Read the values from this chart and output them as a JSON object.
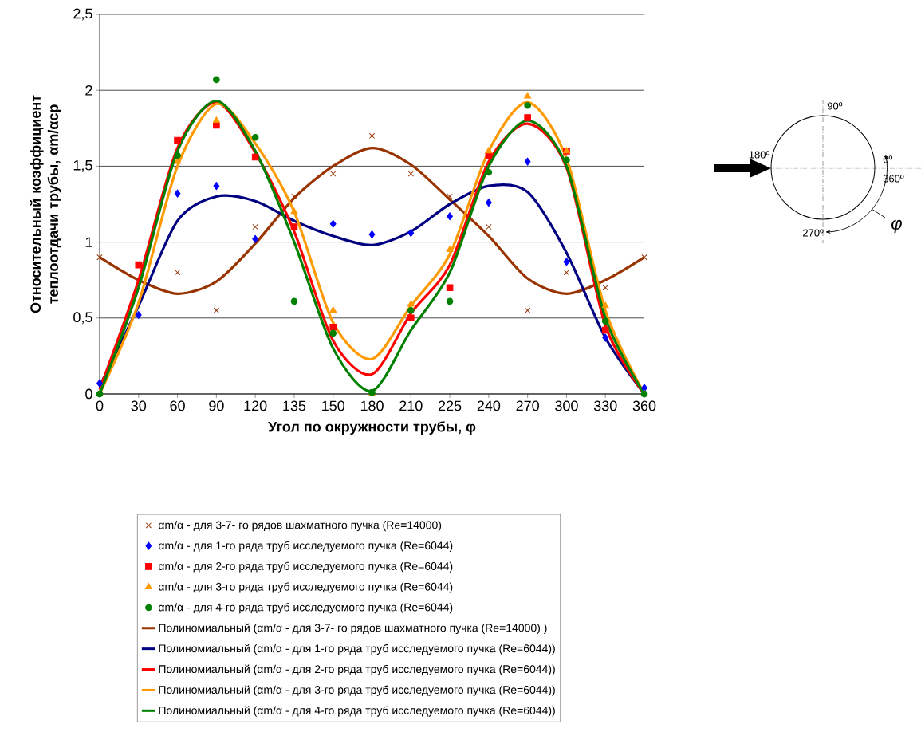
{
  "chart_data": {
    "type": "scatter",
    "xlabel": "Угол по окружности трубы, φ",
    "ylabel": "Относительный коэффициент теплоотдачи трубы, αm/αср",
    "categories": [
      "0",
      "30",
      "60",
      "90",
      "120",
      "135",
      "150",
      "180",
      "210",
      "225",
      "240",
      "270",
      "300",
      "330",
      "360"
    ],
    "ylim": [
      0,
      2.5
    ],
    "yticks": [
      0,
      {
        "value": 0.5,
        "label": "0,5"
      },
      1,
      {
        "value": 1.5,
        "label": "1,5"
      },
      2,
      {
        "value": 2.5,
        "label": "2,5"
      }
    ],
    "grid": "y",
    "legend": "bottom",
    "series": [
      {
        "name": "αm/α - для 3-7- го рядов шахматного пучка (Re=14000)",
        "type": "scatter",
        "marker": "cross",
        "color": "#993300",
        "values": [
          0.9,
          null,
          0.8,
          0.55,
          1.1,
          1.3,
          1.45,
          1.7,
          1.45,
          1.3,
          1.1,
          0.55,
          0.8,
          0.7,
          0.9
        ]
      },
      {
        "name": "αm/α - для 1-го ряда труб исследуемого пучка (Re=6044)",
        "type": "scatter",
        "marker": "diamond",
        "color": "#0000ff",
        "values": [
          0.07,
          0.52,
          1.32,
          1.37,
          1.02,
          null,
          1.12,
          1.05,
          1.06,
          1.17,
          1.26,
          1.53,
          0.87,
          0.37,
          0.04
        ]
      },
      {
        "name": "αm/α - для 2-го ряда труб исследуемого пучка (Re=6044)",
        "type": "scatter",
        "marker": "square",
        "color": "#ff0000",
        "values": [
          null,
          0.85,
          1.67,
          1.77,
          1.56,
          1.1,
          0.44,
          null,
          0.5,
          0.7,
          1.57,
          1.82,
          1.6,
          0.42,
          null
        ]
      },
      {
        "name": "αm/α - для 3-го ряда труб исследуемого пучка (Re=6044)",
        "type": "scatter",
        "marker": "triangle",
        "color": "#ff9900",
        "values": [
          0.0,
          null,
          1.53,
          1.8,
          null,
          1.2,
          0.55,
          0.0,
          0.59,
          0.95,
          1.6,
          1.96,
          1.6,
          0.58,
          0.0
        ]
      },
      {
        "name": "αm/α - для 4-го ряда труб исследуемого пучка (Re=6044)",
        "type": "scatter",
        "marker": "circle",
        "color": "#008000",
        "values": [
          0.0,
          null,
          1.57,
          2.07,
          1.69,
          0.61,
          0.4,
          0.01,
          0.55,
          0.61,
          1.46,
          1.9,
          1.54,
          0.48,
          0.0
        ]
      },
      {
        "name": "Полиномиальный (αm/α - для 3-7- го рядов шахматного пучка (Re=14000) )",
        "type": "line",
        "marker": "none",
        "color": "#993300",
        "values": [
          0.9,
          0.75,
          0.66,
          0.74,
          0.99,
          1.29,
          1.5,
          1.62,
          1.51,
          1.28,
          1.04,
          0.76,
          0.66,
          0.75,
          0.9
        ]
      },
      {
        "name": "Полиномиальный (αm/α - для 1-го ряда труб исследуемого пучка (Re=6044))",
        "type": "line",
        "marker": "none",
        "color": "#000080",
        "values": [
          0.05,
          0.58,
          1.14,
          1.3,
          1.27,
          1.14,
          1.04,
          0.98,
          1.07,
          1.25,
          1.37,
          1.33,
          0.93,
          0.37,
          0.0
        ]
      },
      {
        "name": "Полиномиальный (αm/α - для 2-го ряда труб исследуемого пучка (Re=6044))",
        "type": "line",
        "marker": "none",
        "color": "#ff0000",
        "values": [
          0.03,
          0.75,
          1.62,
          1.92,
          1.59,
          1.07,
          0.35,
          0.13,
          0.53,
          0.85,
          1.53,
          1.78,
          1.49,
          0.45,
          0.0
        ]
      },
      {
        "name": "Полиномиальный (αm/α - для 3-го ряда труб исследуемого пучка (Re=6044))",
        "type": "line",
        "marker": "none",
        "color": "#ff9900",
        "values": [
          0.0,
          0.6,
          1.5,
          1.91,
          1.65,
          1.2,
          0.47,
          0.23,
          0.58,
          0.92,
          1.6,
          1.92,
          1.55,
          0.55,
          0.0
        ]
      },
      {
        "name": "Полиномиальный (αm/α - для 4-го ряда труб исследуемого пучка (Re=6044))",
        "type": "line",
        "marker": "none",
        "color": "#008000",
        "values": [
          0.0,
          0.7,
          1.6,
          1.93,
          1.6,
          1.0,
          0.3,
          0.02,
          0.42,
          0.8,
          1.5,
          1.8,
          1.5,
          0.5,
          0.0
        ]
      }
    ],
    "annotations": [
      "90º",
      "180º",
      "0º",
      "360º",
      "270º",
      "φ"
    ]
  }
}
